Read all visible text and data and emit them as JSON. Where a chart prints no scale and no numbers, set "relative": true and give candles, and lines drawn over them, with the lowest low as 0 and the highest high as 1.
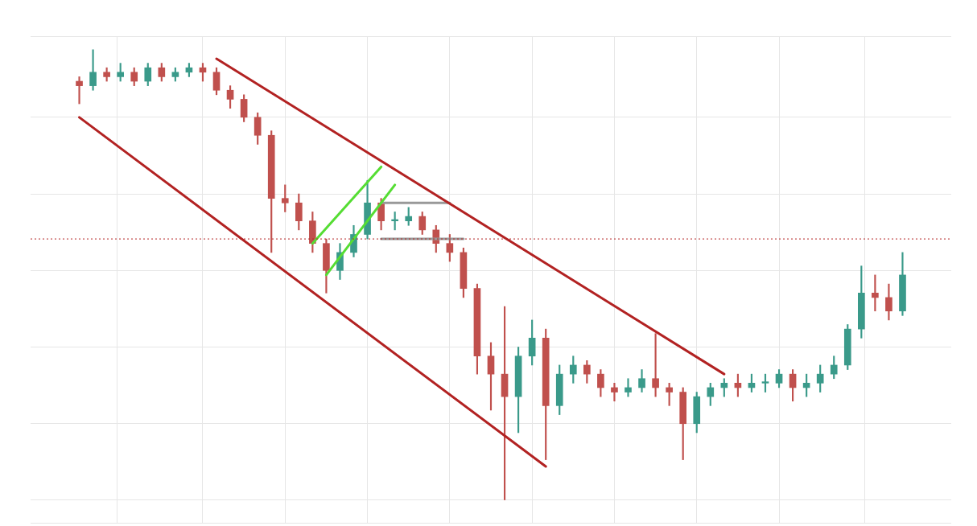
{
  "chart_data": {
    "type": "candlestick",
    "relative": true,
    "grid": true,
    "legend": false,
    "categories": [
      null,
      null,
      null,
      null,
      null,
      null,
      null,
      null,
      null,
      null,
      null,
      null,
      null,
      null,
      null,
      null,
      null,
      null,
      null,
      null,
      null,
      null,
      null,
      null,
      null,
      null,
      null,
      null,
      null,
      null,
      null,
      null,
      null,
      null,
      null,
      null,
      null,
      null,
      null,
      null,
      null,
      null,
      null,
      null,
      null,
      null,
      null,
      null,
      null,
      null,
      null,
      null,
      null,
      null,
      null,
      null,
      null,
      null,
      null,
      null,
      null
    ],
    "ohlc": [
      [
        0.93,
        0.94,
        0.88,
        0.92
      ],
      [
        0.92,
        1.0,
        0.91,
        0.95
      ],
      [
        0.95,
        0.96,
        0.93,
        0.94
      ],
      [
        0.94,
        0.97,
        0.93,
        0.95
      ],
      [
        0.95,
        0.96,
        0.92,
        0.93
      ],
      [
        0.93,
        0.97,
        0.92,
        0.96
      ],
      [
        0.96,
        0.97,
        0.93,
        0.94
      ],
      [
        0.94,
        0.96,
        0.93,
        0.95
      ],
      [
        0.95,
        0.97,
        0.94,
        0.96
      ],
      [
        0.96,
        0.97,
        0.93,
        0.95
      ],
      [
        0.95,
        0.96,
        0.9,
        0.91
      ],
      [
        0.91,
        0.92,
        0.87,
        0.89
      ],
      [
        0.89,
        0.9,
        0.84,
        0.85
      ],
      [
        0.85,
        0.86,
        0.79,
        0.81
      ],
      [
        0.81,
        0.82,
        0.55,
        0.67
      ],
      [
        0.67,
        0.7,
        0.64,
        0.66
      ],
      [
        0.66,
        0.68,
        0.6,
        0.62
      ],
      [
        0.62,
        0.64,
        0.55,
        0.57
      ],
      [
        0.57,
        0.58,
        0.46,
        0.51
      ],
      [
        0.51,
        0.57,
        0.49,
        0.55
      ],
      [
        0.55,
        0.61,
        0.54,
        0.59
      ],
      [
        0.59,
        0.71,
        0.58,
        0.66
      ],
      [
        0.66,
        0.67,
        0.6,
        0.62
      ],
      [
        0.62,
        0.64,
        0.6,
        0.62
      ],
      [
        0.62,
        0.65,
        0.61,
        0.63
      ],
      [
        0.63,
        0.64,
        0.59,
        0.6
      ],
      [
        0.6,
        0.61,
        0.55,
        0.57
      ],
      [
        0.57,
        0.59,
        0.53,
        0.55
      ],
      [
        0.55,
        0.56,
        0.45,
        0.47
      ],
      [
        0.47,
        0.48,
        0.28,
        0.32
      ],
      [
        0.32,
        0.35,
        0.2,
        0.28
      ],
      [
        0.28,
        0.43,
        0.0,
        0.23
      ],
      [
        0.23,
        0.34,
        0.15,
        0.32
      ],
      [
        0.32,
        0.4,
        0.3,
        0.36
      ],
      [
        0.36,
        0.38,
        0.09,
        0.21
      ],
      [
        0.21,
        0.3,
        0.19,
        0.28
      ],
      [
        0.28,
        0.32,
        0.26,
        0.3
      ],
      [
        0.3,
        0.31,
        0.26,
        0.28
      ],
      [
        0.28,
        0.29,
        0.23,
        0.25
      ],
      [
        0.25,
        0.26,
        0.22,
        0.24
      ],
      [
        0.24,
        0.27,
        0.23,
        0.25
      ],
      [
        0.25,
        0.29,
        0.24,
        0.27
      ],
      [
        0.27,
        0.37,
        0.23,
        0.25
      ],
      [
        0.25,
        0.26,
        0.21,
        0.24
      ],
      [
        0.24,
        0.25,
        0.09,
        0.17
      ],
      [
        0.17,
        0.24,
        0.15,
        0.23
      ],
      [
        0.23,
        0.26,
        0.21,
        0.25
      ],
      [
        0.25,
        0.27,
        0.23,
        0.26
      ],
      [
        0.26,
        0.28,
        0.23,
        0.25
      ],
      [
        0.25,
        0.28,
        0.24,
        0.26
      ],
      [
        0.26,
        0.28,
        0.24,
        0.26
      ],
      [
        0.26,
        0.29,
        0.25,
        0.28
      ],
      [
        0.28,
        0.29,
        0.22,
        0.25
      ],
      [
        0.25,
        0.28,
        0.23,
        0.26
      ],
      [
        0.26,
        0.3,
        0.24,
        0.28
      ],
      [
        0.28,
        0.32,
        0.27,
        0.3
      ],
      [
        0.3,
        0.39,
        0.29,
        0.38
      ],
      [
        0.38,
        0.52,
        0.36,
        0.46
      ],
      [
        0.46,
        0.5,
        0.42,
        0.45
      ],
      [
        0.45,
        0.48,
        0.4,
        0.42
      ],
      [
        0.42,
        0.55,
        0.41,
        0.5
      ]
    ],
    "colors": [
      "#c0504d",
      "#3a9a8a",
      "#c0504d",
      "#3a9a8a",
      "#c0504d",
      "#3a9a8a",
      "#c0504d",
      "#3a9a8a",
      "#3a9a8a",
      "#c0504d",
      "#c0504d",
      "#c0504d",
      "#c0504d",
      "#c0504d",
      "#c0504d",
      "#c0504d",
      "#c0504d",
      "#c0504d",
      "#c0504d",
      "#3a9a8a",
      "#3a9a8a",
      "#3a9a8a",
      "#c0504d",
      "#3a9a8a",
      "#3a9a8a",
      "#c0504d",
      "#c0504d",
      "#c0504d",
      "#c0504d",
      "#c0504d",
      "#c0504d",
      "#c0504d",
      "#3a9a8a",
      "#3a9a8a",
      "#c0504d",
      "#3a9a8a",
      "#3a9a8a",
      "#c0504d",
      "#c0504d",
      "#c0504d",
      "#3a9a8a",
      "#3a9a8a",
      "#c0504d",
      "#c0504d",
      "#c0504d",
      "#3a9a8a",
      "#3a9a8a",
      "#3a9a8a",
      "#c0504d",
      "#3a9a8a",
      "#3a9a8a",
      "#3a9a8a",
      "#c0504d",
      "#3a9a8a",
      "#3a9a8a",
      "#3a9a8a",
      "#3a9a8a",
      "#3a9a8a",
      "#c0504d",
      "#c0504d",
      "#3a9a8a"
    ],
    "series": [
      {
        "type": "line",
        "color": "#b22222",
        "values": [
          null,
          null,
          null,
          null,
          null,
          null,
          null,
          null,
          null,
          null,
          0.98,
          null,
          null,
          null,
          null,
          null,
          null,
          null,
          null,
          null,
          null,
          null,
          null,
          null,
          null,
          null,
          null,
          null,
          null,
          null,
          null,
          null,
          null,
          null,
          null,
          null,
          null,
          null,
          null,
          null,
          null,
          null,
          null,
          null,
          null,
          null,
          null,
          0.28,
          null,
          null,
          null,
          null,
          null,
          null,
          null,
          null,
          null,
          null,
          null,
          null,
          null
        ]
      },
      {
        "type": "line",
        "color": "#b22222",
        "values": [
          0.85,
          null,
          null,
          null,
          null,
          null,
          null,
          null,
          null,
          null,
          null,
          null,
          null,
          null,
          null,
          null,
          null,
          null,
          null,
          null,
          null,
          null,
          null,
          null,
          null,
          null,
          null,
          null,
          null,
          null,
          null,
          null,
          null,
          null,
          0.075,
          null,
          null,
          null,
          null,
          null,
          null,
          null,
          null,
          null,
          null,
          null,
          null,
          null,
          null,
          null,
          null,
          null,
          null,
          null,
          null,
          null,
          null,
          null,
          null,
          null,
          null
        ]
      },
      {
        "type": "line",
        "color": "#55dd33",
        "values": [
          null,
          null,
          null,
          null,
          null,
          null,
          null,
          null,
          null,
          null,
          null,
          null,
          null,
          null,
          null,
          null,
          null,
          0.57,
          null,
          null,
          null,
          null,
          0.74,
          null,
          null,
          null,
          null,
          null,
          null,
          null,
          null,
          null,
          null,
          null,
          null,
          null,
          null,
          null,
          null,
          null,
          null,
          null,
          null,
          null,
          null,
          null,
          null,
          null,
          null,
          null,
          null,
          null,
          null,
          null,
          null,
          null,
          null,
          null,
          null,
          null,
          null
        ]
      },
      {
        "type": "line",
        "color": "#55dd33",
        "values": [
          null,
          null,
          null,
          null,
          null,
          null,
          null,
          null,
          null,
          null,
          null,
          null,
          null,
          null,
          null,
          null,
          null,
          null,
          0.5,
          null,
          null,
          null,
          null,
          0.7,
          null,
          null,
          null,
          null,
          null,
          null,
          null,
          null,
          null,
          null,
          null,
          null,
          null,
          null,
          null,
          null,
          null,
          null,
          null,
          null,
          null,
          null,
          null,
          null,
          null,
          null,
          null,
          null,
          null,
          null,
          null,
          null,
          null,
          null,
          null,
          null,
          null
        ]
      },
      {
        "type": "line",
        "color": "#999999",
        "values": [
          null,
          null,
          null,
          null,
          null,
          null,
          null,
          null,
          null,
          null,
          null,
          null,
          null,
          null,
          null,
          null,
          null,
          null,
          null,
          null,
          null,
          null,
          0.66,
          null,
          null,
          null,
          null,
          0.66,
          null,
          null,
          null,
          null,
          null,
          null,
          null,
          null,
          null,
          null,
          null,
          null,
          null,
          null,
          null,
          null,
          null,
          null,
          null,
          null,
          null,
          null,
          null,
          null,
          null,
          null,
          null,
          null,
          null,
          null,
          null,
          null,
          null
        ]
      },
      {
        "type": "line",
        "color": "#999999",
        "values": [
          null,
          null,
          null,
          null,
          null,
          null,
          null,
          null,
          null,
          null,
          null,
          null,
          null,
          null,
          null,
          null,
          null,
          null,
          null,
          null,
          null,
          null,
          0.58,
          null,
          null,
          null,
          null,
          null,
          0.58,
          null,
          null,
          null,
          null,
          null,
          null,
          null,
          null,
          null,
          null,
          null,
          null,
          null,
          null,
          null,
          null,
          null,
          null,
          null,
          null,
          null,
          null,
          null,
          null,
          null,
          null,
          null,
          null,
          null,
          null,
          null,
          null
        ]
      }
    ],
    "ref_lines": [
      {
        "axis": "y",
        "value": 0.58,
        "color": "#b22222",
        "line_style": "dotted"
      }
    ]
  }
}
